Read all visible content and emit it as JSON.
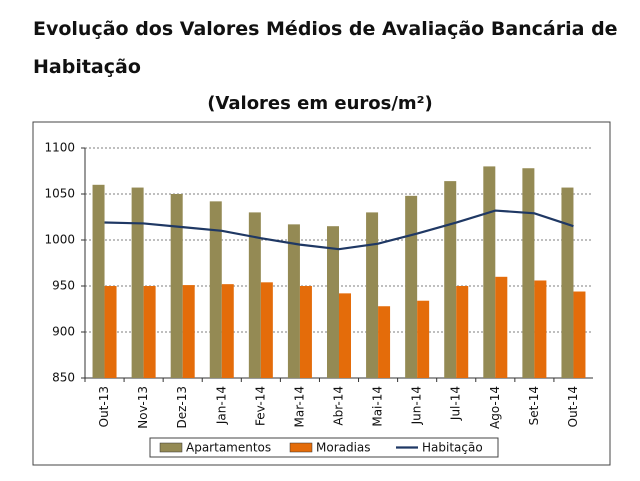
{
  "chart_data": {
    "type": "bar",
    "title": "Evolução dos Valores Médios de Avaliação Bancária de Habitação",
    "subtitle": "(Valores em euros/m²)",
    "categories": [
      "Out-13",
      "Nov-13",
      "Dez-13",
      "Jan-14",
      "Fev-14",
      "Mar-14",
      "Abr-14",
      "Mai-14",
      "Jun-14",
      "Jul-14",
      "Ago-14",
      "Set-14",
      "Out-14"
    ],
    "series": [
      {
        "name": "Apartamentos",
        "type": "bar",
        "color": "#948a54",
        "values": [
          1060,
          1057,
          1050,
          1042,
          1030,
          1017,
          1015,
          1030,
          1048,
          1064,
          1080,
          1078,
          1057
        ]
      },
      {
        "name": "Moradias",
        "type": "bar",
        "color": "#e46c0a",
        "values": [
          950,
          950,
          951,
          952,
          954,
          950,
          942,
          928,
          934,
          950,
          960,
          956,
          944
        ]
      },
      {
        "name": "Habitação",
        "type": "line",
        "color": "#1f3864",
        "values": [
          1019,
          1018,
          1014,
          1010,
          1002,
          995,
          990,
          996,
          1007,
          1019,
          1032,
          1029,
          1015
        ]
      }
    ],
    "ylim": [
      850,
      1100
    ],
    "yticks": [
      850,
      900,
      950,
      1000,
      1050,
      1100
    ],
    "grid": true,
    "legend": "bottom"
  }
}
